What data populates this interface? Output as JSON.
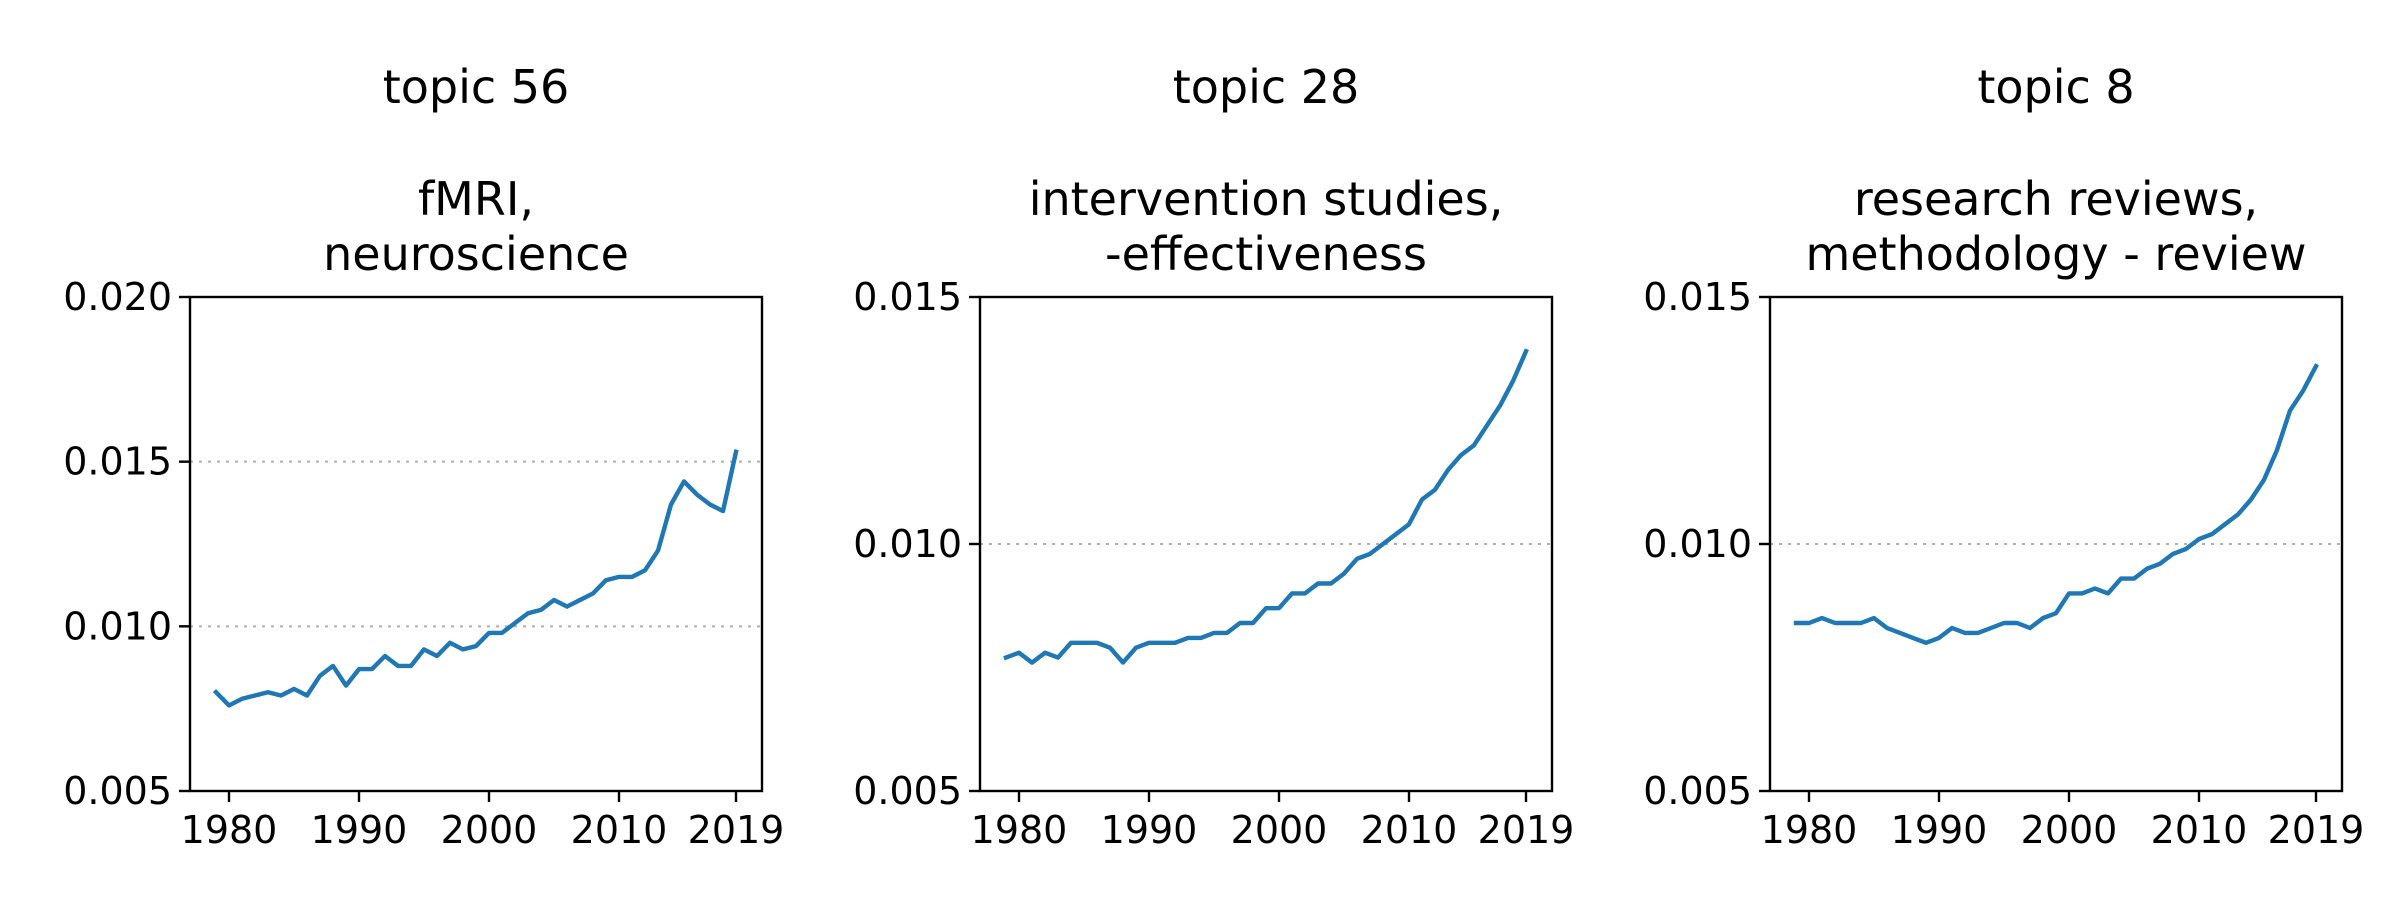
{
  "chart_data": [
    {
      "type": "line",
      "title_lines": [
        "topic 56",
        "",
        "fMRI,",
        "neuroscience"
      ],
      "xlabel": "",
      "ylabel": "",
      "xlim": [
        1977,
        2021
      ],
      "ylim": [
        0.005,
        0.02
      ],
      "xticks": [
        1980,
        1990,
        2000,
        2010,
        2019
      ],
      "xtick_labels": [
        "1980",
        "1990",
        "2000",
        "2010",
        "2019"
      ],
      "yticks": [
        0.005,
        0.01,
        0.015,
        0.02
      ],
      "ytick_labels": [
        "0.005",
        "0.010",
        "0.015",
        "0.020"
      ],
      "grid": {
        "axis": "y",
        "values": [
          0.01,
          0.015
        ],
        "style": "dotted"
      },
      "series": [
        {
          "color": "#1f77b4",
          "x": [
            1979,
            1980,
            1981,
            1982,
            1983,
            1984,
            1985,
            1986,
            1987,
            1988,
            1989,
            1990,
            1991,
            1992,
            1993,
            1994,
            1995,
            1996,
            1997,
            1998,
            1999,
            2000,
            2001,
            2002,
            2003,
            2004,
            2005,
            2006,
            2007,
            2008,
            2009,
            2010,
            2011,
            2012,
            2013,
            2014,
            2015,
            2016,
            2017,
            2018,
            2019
          ],
          "y": [
            0.008,
            0.0076,
            0.0078,
            0.0079,
            0.008,
            0.0079,
            0.0081,
            0.0079,
            0.0085,
            0.0088,
            0.0082,
            0.0087,
            0.0087,
            0.0091,
            0.0088,
            0.0088,
            0.0093,
            0.0091,
            0.0095,
            0.0093,
            0.0094,
            0.0098,
            0.0098,
            0.0101,
            0.0104,
            0.0105,
            0.0108,
            0.0106,
            0.0108,
            0.011,
            0.0114,
            0.0115,
            0.0115,
            0.0117,
            0.0123,
            0.0137,
            0.0144,
            0.014,
            0.0137,
            0.0135,
            0.0153
          ]
        }
      ]
    },
    {
      "type": "line",
      "title_lines": [
        "topic 28",
        "",
        "intervention studies,",
        "-effectiveness"
      ],
      "xlabel": "",
      "ylabel": "",
      "xlim": [
        1977,
        2021
      ],
      "ylim": [
        0.005,
        0.015
      ],
      "xticks": [
        1980,
        1990,
        2000,
        2010,
        2019
      ],
      "xtick_labels": [
        "1980",
        "1990",
        "2000",
        "2010",
        "2019"
      ],
      "yticks": [
        0.005,
        0.01,
        0.015
      ],
      "ytick_labels": [
        "0.005",
        "0.010",
        "0.015"
      ],
      "grid": {
        "axis": "y",
        "values": [
          0.01
        ],
        "style": "dotted"
      },
      "series": [
        {
          "color": "#1f77b4",
          "x": [
            1979,
            1980,
            1981,
            1982,
            1983,
            1984,
            1985,
            1986,
            1987,
            1988,
            1989,
            1990,
            1991,
            1992,
            1993,
            1994,
            1995,
            1996,
            1997,
            1998,
            1999,
            2000,
            2001,
            2002,
            2003,
            2004,
            2005,
            2006,
            2007,
            2008,
            2009,
            2010,
            2011,
            2012,
            2013,
            2014,
            2015,
            2016,
            2017,
            2018,
            2019
          ],
          "y": [
            0.0077,
            0.0078,
            0.0076,
            0.0078,
            0.0077,
            0.008,
            0.008,
            0.008,
            0.0079,
            0.0076,
            0.0079,
            0.008,
            0.008,
            0.008,
            0.0081,
            0.0081,
            0.0082,
            0.0082,
            0.0084,
            0.0084,
            0.0087,
            0.0087,
            0.009,
            0.009,
            0.0092,
            0.0092,
            0.0094,
            0.0097,
            0.0098,
            0.01,
            0.0102,
            0.0104,
            0.0109,
            0.0111,
            0.0115,
            0.0118,
            0.012,
            0.0124,
            0.0128,
            0.0133,
            0.0139
          ]
        }
      ]
    },
    {
      "type": "line",
      "title_lines": [
        "topic 8",
        "",
        "research reviews,",
        "methodology - review"
      ],
      "xlabel": "",
      "ylabel": "",
      "xlim": [
        1977,
        2021
      ],
      "ylim": [
        0.005,
        0.015
      ],
      "xticks": [
        1980,
        1990,
        2000,
        2010,
        2019
      ],
      "xtick_labels": [
        "1980",
        "1990",
        "2000",
        "2010",
        "2019"
      ],
      "yticks": [
        0.005,
        0.01,
        0.015
      ],
      "ytick_labels": [
        "0.005",
        "0.010",
        "0.015"
      ],
      "grid": {
        "axis": "y",
        "values": [
          0.01
        ],
        "style": "dotted"
      },
      "series": [
        {
          "color": "#1f77b4",
          "x": [
            1979,
            1980,
            1981,
            1982,
            1983,
            1984,
            1985,
            1986,
            1987,
            1988,
            1989,
            1990,
            1991,
            1992,
            1993,
            1994,
            1995,
            1996,
            1997,
            1998,
            1999,
            2000,
            2001,
            2002,
            2003,
            2004,
            2005,
            2006,
            2007,
            2008,
            2009,
            2010,
            2011,
            2012,
            2013,
            2014,
            2015,
            2016,
            2017,
            2018,
            2019
          ],
          "y": [
            0.0084,
            0.0084,
            0.0085,
            0.0084,
            0.0084,
            0.0084,
            0.0085,
            0.0083,
            0.0082,
            0.0081,
            0.008,
            0.0081,
            0.0083,
            0.0082,
            0.0082,
            0.0083,
            0.0084,
            0.0084,
            0.0083,
            0.0085,
            0.0086,
            0.009,
            0.009,
            0.0091,
            0.009,
            0.0093,
            0.0093,
            0.0095,
            0.0096,
            0.0098,
            0.0099,
            0.0101,
            0.0102,
            0.0104,
            0.0106,
            0.0109,
            0.0113,
            0.0119,
            0.0127,
            0.0131,
            0.0136
          ]
        }
      ]
    }
  ]
}
